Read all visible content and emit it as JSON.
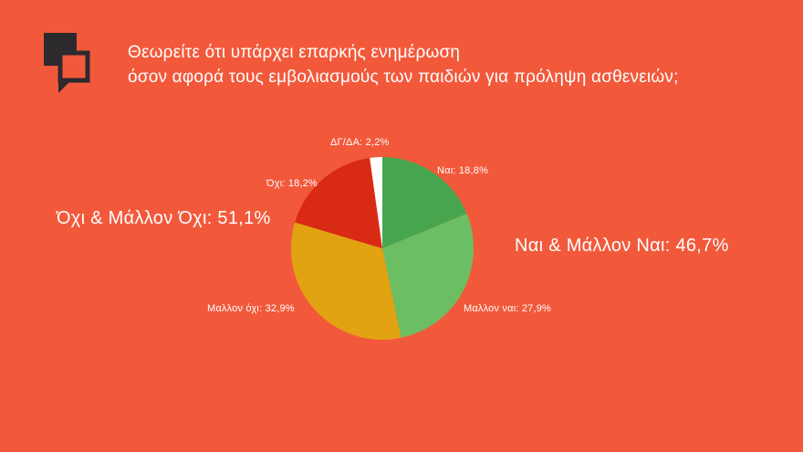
{
  "theme": {
    "background": "#f2593b",
    "logo_color": "#2d2a2e",
    "text_color": "#ffffff"
  },
  "header": {
    "title_line1": "Θεωρείτε ότι υπάρχει επαρκής ενημέρωση",
    "title_line2": "όσον αφορά τους εμβολιασμούς των παιδιών για πρόληψη ασθενειών;"
  },
  "chart_data": {
    "type": "pie",
    "title": "Θεωρείτε ότι υπάρχει επαρκής ενημέρωση όσον αφορά τους εμβολιασμούς των παιδιών για πρόληψη ασθενειών;",
    "start_angle_deg": 0,
    "direction": "clockwise",
    "slices": [
      {
        "label": "Ναι",
        "value": 18.8,
        "display": "Ναι: 18,8%",
        "color": "#47a54e"
      },
      {
        "label": "Μαλλον ναι",
        "value": 27.9,
        "display": "Μαλλον ναι: 27,9%",
        "color": "#6cbe63"
      },
      {
        "label": "Μαλλον όχι",
        "value": 32.9,
        "display": "Μαλλον όχι: 32,9%",
        "color": "#e2a312"
      },
      {
        "label": "Όχι",
        "value": 18.2,
        "display": "Όχι: 18,2%",
        "color": "#d92a14"
      },
      {
        "label": "ΔΓ/ΔΑ",
        "value": 2.2,
        "display": "ΔΓ/ΔΑ: 2,2%",
        "color": "#ffffff"
      }
    ],
    "legend_position": "around-slices",
    "aggregates": {
      "left": "Όχι & Μάλλον Όχι: 51,1%",
      "right": "Ναι & Μάλλον Ναι: 46,7%"
    }
  }
}
